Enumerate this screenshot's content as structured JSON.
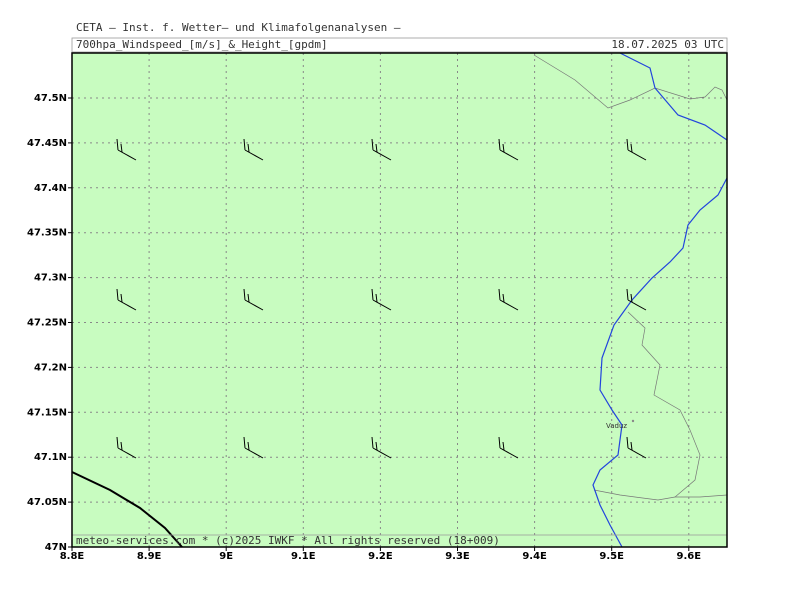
{
  "header": {
    "institute": "CETA – Inst. f. Wetter– und Klimafolgenanalysen –",
    "field": "700hpa_Windspeed_[m/s]_&_Height_[gpdm]",
    "valid_time": "18.07.2025 03 UTC"
  },
  "x_axis": {
    "labels": [
      "8.8E",
      "8.9E",
      "9E",
      "9.1E",
      "9.2E",
      "9.3E",
      "9.4E",
      "9.5E",
      "9.6E"
    ]
  },
  "y_axis": {
    "labels": [
      "47N",
      "47.05N",
      "47.1N",
      "47.15N",
      "47.2N",
      "47.25N",
      "47.3N",
      "47.35N",
      "47.4N",
      "47.45N",
      "47.5N"
    ]
  },
  "places": [
    {
      "label": "Vaduz"
    }
  ],
  "footer": "meteo-services.com * (c)2025 IWKF * All rights reserved (18+009)"
}
